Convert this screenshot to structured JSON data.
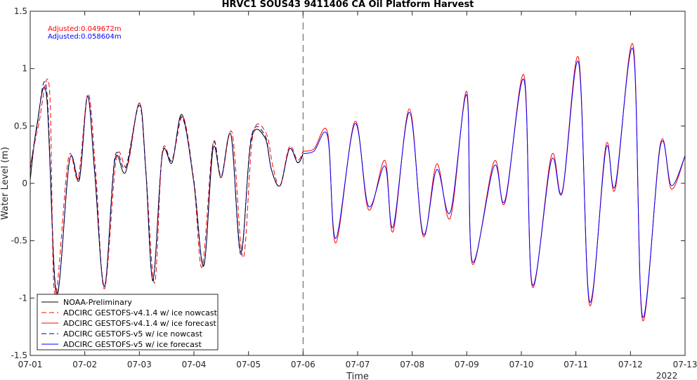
{
  "chart_data": {
    "type": "line",
    "title": "HRVC1 SOUS43 9411406 CA Oil Platform Harvest",
    "xlabel": "Time",
    "ylabel": "Water Level (m)",
    "xlim": [
      0,
      12
    ],
    "ylim": [
      -1.5,
      1.5
    ],
    "x_tick_values": [
      0,
      1,
      2,
      3,
      4,
      5,
      6,
      7,
      8,
      9,
      10,
      11,
      12
    ],
    "x_tick_labels": [
      "07-01",
      "07-02",
      "07-03",
      "07-04",
      "07-05",
      "07-06",
      "07-07",
      "07-08",
      "07-09",
      "07-10",
      "07-11",
      "07-12",
      "07-13"
    ],
    "x_year_label": "2022",
    "y_tick_values": [
      -1.5,
      -1,
      -0.5,
      0,
      0.5,
      1,
      1.5
    ],
    "y_tick_labels": [
      "-1.5",
      "-1",
      "-0.5",
      "0",
      "0.5",
      "1",
      "1.5"
    ],
    "grid": false,
    "legend_position": "bottom-left",
    "nowcast_forecast_divider_x": 5,
    "annotations": [
      {
        "text": "Adjusted:0.049672m",
        "color": "#ff0000"
      },
      {
        "text": "Adjusted:0.058604m",
        "color": "#0000ff"
      }
    ],
    "series": [
      {
        "name": "NOAA-Preliminary",
        "color": "#000000",
        "dash": "solid",
        "x": [
          0,
          0.12,
          0.3,
          0.48,
          0.72,
          0.9,
          1.05,
          1.18,
          1.36,
          1.55,
          1.75,
          2.0,
          2.12,
          2.25,
          2.42,
          2.6,
          2.78,
          3.0,
          3.18,
          3.35,
          3.5,
          3.68,
          3.86,
          4.05,
          4.3,
          4.42,
          4.58,
          4.75,
          4.9,
          5.0
        ],
        "y": [
          0.03,
          0.5,
          0.76,
          -0.97,
          0.2,
          0.03,
          0.76,
          0.1,
          -0.9,
          0.2,
          0.1,
          0.7,
          0.1,
          -0.84,
          0.25,
          0.18,
          0.6,
          0.0,
          -0.72,
          0.3,
          0.05,
          0.42,
          -0.6,
          0.38,
          0.4,
          0.12,
          -0.02,
          0.3,
          0.18,
          0.25
        ]
      },
      {
        "name": "ADCIRC GESTOFS-v4.1.4 w/ ice nowcast",
        "color": "#ff0000",
        "dash": "dashed",
        "x": [
          0,
          0.15,
          0.35,
          0.45,
          0.7,
          0.88,
          1.06,
          1.2,
          1.36,
          1.58,
          1.78,
          2.0,
          2.12,
          2.28,
          2.42,
          2.6,
          2.8,
          3.0,
          3.15,
          3.35,
          3.5,
          3.7,
          3.9,
          4.08,
          4.32,
          4.45,
          4.58,
          4.75,
          4.9,
          5.0
        ],
        "y": [
          0.15,
          0.5,
          0.84,
          -0.97,
          0.22,
          0.05,
          0.78,
          0.1,
          -0.92,
          0.22,
          0.15,
          0.7,
          0.1,
          -0.87,
          0.27,
          0.2,
          0.58,
          0.0,
          -0.73,
          0.35,
          0.05,
          0.44,
          -0.65,
          0.42,
          0.44,
          0.14,
          -0.02,
          0.32,
          0.2,
          0.28
        ]
      },
      {
        "name": "ADCIRC GESTOFS-v4.1.4 w/ ice forecast",
        "color": "#ff0000",
        "dash": "solid",
        "x": [
          5.0,
          5.2,
          5.45,
          5.6,
          5.95,
          6.2,
          6.5,
          6.65,
          6.95,
          7.2,
          7.45,
          7.7,
          8.0,
          8.1,
          8.5,
          8.7,
          9.05,
          9.2,
          9.55,
          9.75,
          10.05,
          10.25,
          10.55,
          10.72,
          11.05,
          11.22,
          11.55,
          11.75,
          12.0
        ],
        "y": [
          0.28,
          0.3,
          0.44,
          -0.52,
          0.54,
          -0.23,
          0.2,
          -0.42,
          0.65,
          -0.46,
          0.17,
          -0.3,
          0.8,
          -0.7,
          0.19,
          -0.17,
          0.94,
          -0.9,
          0.24,
          -0.07,
          1.09,
          -1.06,
          0.33,
          -0.05,
          1.2,
          -1.19,
          0.35,
          -0.05,
          0.24
        ]
      },
      {
        "name": "ADCIRC GESTOFS-v5 w/ ice nowcast",
        "color": "#000080",
        "dash": "dashed",
        "x": [
          0,
          0.12,
          0.3,
          0.48,
          0.72,
          0.9,
          1.05,
          1.18,
          1.36,
          1.55,
          1.75,
          2.0,
          2.12,
          2.25,
          2.42,
          2.6,
          2.78,
          3.0,
          3.18,
          3.35,
          3.5,
          3.68,
          3.86,
          4.05,
          4.3,
          4.42,
          4.58,
          4.75,
          4.9,
          5.0
        ],
        "y": [
          0.12,
          0.48,
          0.82,
          -0.95,
          0.2,
          0.05,
          0.76,
          0.12,
          -0.9,
          0.22,
          0.14,
          0.68,
          0.1,
          -0.85,
          0.25,
          0.2,
          0.58,
          0.02,
          -0.71,
          0.34,
          0.06,
          0.42,
          -0.62,
          0.4,
          0.42,
          0.12,
          -0.02,
          0.3,
          0.18,
          0.26
        ]
      },
      {
        "name": "ADCIRC GESTOFS-v5 w/ ice forecast",
        "color": "#0000ff",
        "dash": "solid",
        "x": [
          5.0,
          5.2,
          5.45,
          5.6,
          5.95,
          6.2,
          6.5,
          6.65,
          6.95,
          7.2,
          7.45,
          7.7,
          8.0,
          8.1,
          8.5,
          8.7,
          9.05,
          9.2,
          9.55,
          9.75,
          10.05,
          10.25,
          10.55,
          10.72,
          11.05,
          11.22,
          11.55,
          11.75,
          12.0
        ],
        "y": [
          0.26,
          0.28,
          0.41,
          -0.48,
          0.52,
          -0.2,
          0.15,
          -0.38,
          0.62,
          -0.44,
          0.12,
          -0.25,
          0.77,
          -0.68,
          0.15,
          -0.15,
          0.9,
          -0.88,
          0.2,
          -0.08,
          1.05,
          -1.03,
          0.3,
          -0.02,
          1.16,
          -1.16,
          0.33,
          -0.02,
          0.24
        ]
      }
    ]
  }
}
